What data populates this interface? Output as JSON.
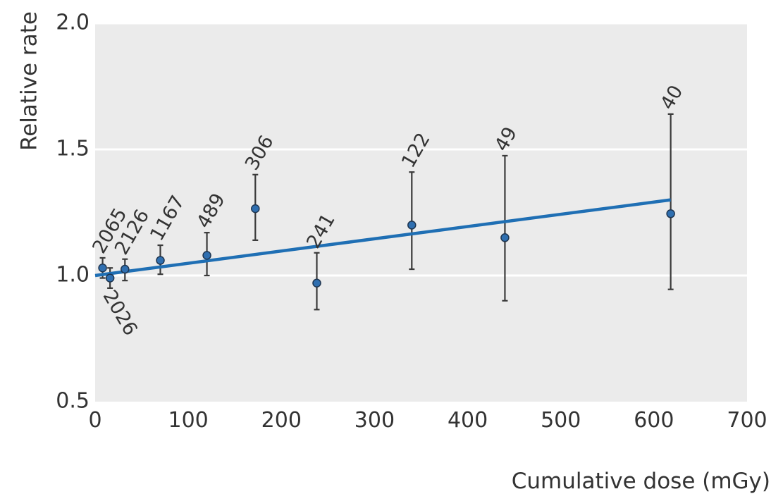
{
  "chart_data": {
    "type": "scatter",
    "title": "",
    "xlabel": "Cumulative dose (mGy)",
    "ylabel": "Relative rate",
    "xlim": [
      0,
      700
    ],
    "ylim": [
      0.5,
      2.0
    ],
    "xticks": [
      "0",
      "100",
      "200",
      "300",
      "400",
      "500",
      "600",
      "700"
    ],
    "yticks": [
      "0.5",
      "1.0",
      "1.5",
      "2.0"
    ],
    "grid": "horizontal",
    "colors": {
      "plot_background": "#ebebeb",
      "gridline": "#ffffff",
      "fit_line": "#1f6fb4",
      "point_fill": "#2f6fb0",
      "errorbar": "#3a3a3a"
    },
    "points": [
      {
        "x": 8,
        "y": 1.03,
        "lo": 0.99,
        "hi": 1.07,
        "n": "2065",
        "label_pos": "above"
      },
      {
        "x": 16,
        "y": 0.99,
        "lo": 0.95,
        "hi": 1.03,
        "n": "2026",
        "label_pos": "below"
      },
      {
        "x": 32,
        "y": 1.025,
        "lo": 0.98,
        "hi": 1.065,
        "n": "2126",
        "label_pos": "above"
      },
      {
        "x": 70,
        "y": 1.06,
        "lo": 1.005,
        "hi": 1.12,
        "n": "1167",
        "label_pos": "above"
      },
      {
        "x": 120,
        "y": 1.08,
        "lo": 1.0,
        "hi": 1.17,
        "n": "489",
        "label_pos": "above"
      },
      {
        "x": 172,
        "y": 1.265,
        "lo": 1.14,
        "hi": 1.4,
        "n": "306",
        "label_pos": "above"
      },
      {
        "x": 238,
        "y": 0.97,
        "lo": 0.865,
        "hi": 1.09,
        "n": "241",
        "label_pos": "above"
      },
      {
        "x": 340,
        "y": 1.2,
        "lo": 1.025,
        "hi": 1.41,
        "n": "122",
        "label_pos": "above"
      },
      {
        "x": 440,
        "y": 1.15,
        "lo": 0.9,
        "hi": 1.475,
        "n": "49",
        "label_pos": "above"
      },
      {
        "x": 618,
        "y": 1.245,
        "lo": 0.945,
        "hi": 1.64,
        "n": "40",
        "label_pos": "above"
      }
    ],
    "fit_line": {
      "x": [
        0,
        618
      ],
      "y": [
        1.0,
        1.3
      ]
    }
  }
}
